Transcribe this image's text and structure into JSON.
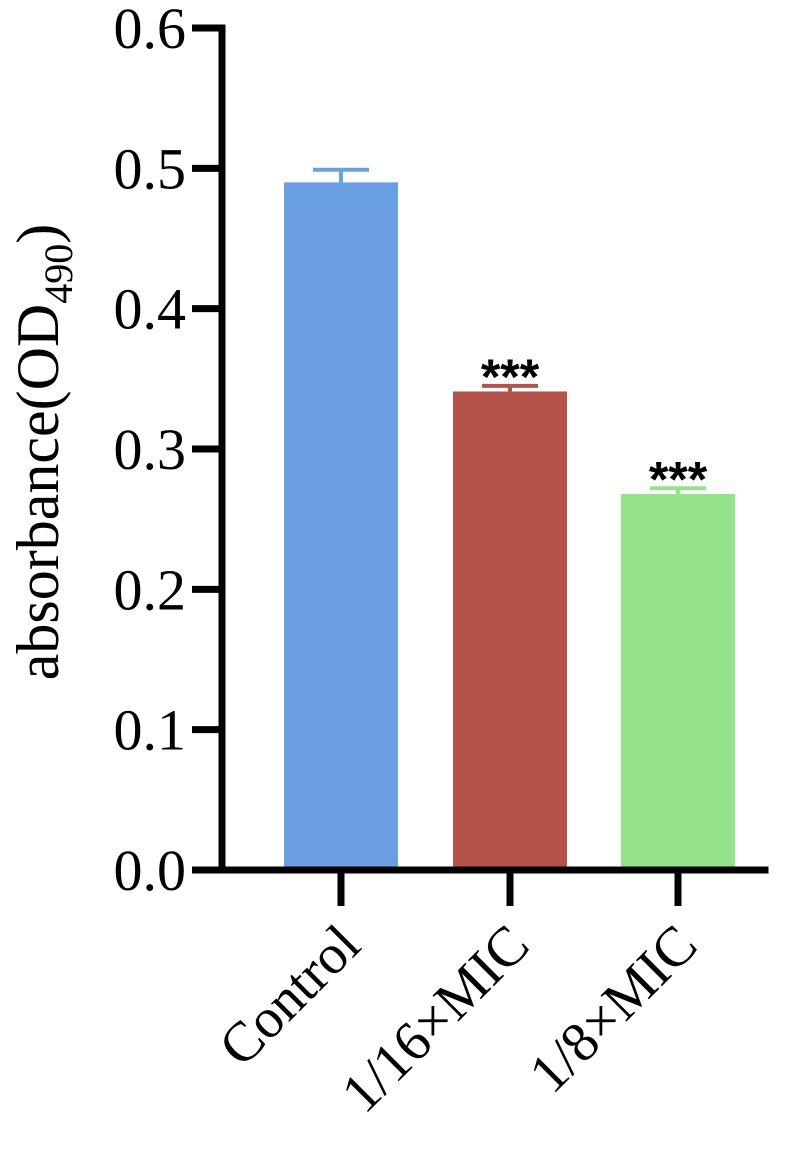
{
  "chart_data": {
    "type": "bar",
    "categories": [
      "Control",
      "1/16×MIC",
      "1/8×MIC"
    ],
    "values": [
      0.49,
      0.341,
      0.268
    ],
    "errors": [
      0.009,
      0.004,
      0.004
    ],
    "significance": [
      "",
      "***",
      "***"
    ],
    "colors": [
      "#6a9fe3",
      "#b5524a",
      "#94e28a"
    ],
    "title": "",
    "xlabel": "",
    "ylabel": {
      "main": "absorbance(OD",
      "sub": "490",
      "close": ")"
    },
    "ylim": [
      0,
      0.6
    ],
    "yticks": [
      "0.0",
      "0.1",
      "0.2",
      "0.3",
      "0.4",
      "0.5",
      "0.6"
    ],
    "grid": false,
    "legend": "none"
  }
}
